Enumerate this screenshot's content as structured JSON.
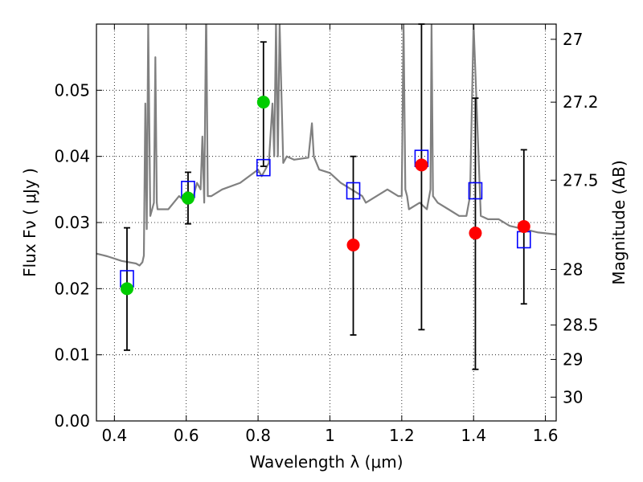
{
  "chart_data": {
    "type": "scatter",
    "xlabel": "Wavelength  λ (μm)",
    "ylabel": "Flux  Fν ( μJy )",
    "ylabel_right": "Magnitude (AB)",
    "xlim": [
      0.35,
      1.63
    ],
    "ylim": [
      0.0,
      0.06
    ],
    "grid": true,
    "x_ticks": [
      0.4,
      0.6,
      0.8,
      1.0,
      1.2,
      1.4,
      1.6
    ],
    "x_tick_labels": [
      "0.4",
      "0.6",
      "0.8",
      "1",
      "1.2",
      "1.4",
      "1.6"
    ],
    "y_ticks": [
      0.0,
      0.01,
      0.02,
      0.03,
      0.04,
      0.05
    ],
    "y_tick_labels": [
      "0.00",
      "0.01",
      "0.02",
      "0.03",
      "0.04",
      "0.05"
    ],
    "right_ticks": [
      {
        "label": "27",
        "flux": 0.0577
      },
      {
        "label": "27.2",
        "flux": 0.0482
      },
      {
        "label": "27.5",
        "flux": 0.0364
      },
      {
        "label": "28",
        "flux": 0.0229
      },
      {
        "label": "28.5",
        "flux": 0.0145
      },
      {
        "label": "29",
        "flux": 0.0093
      },
      {
        "label": "30",
        "flux": 0.0036
      }
    ],
    "series": [
      {
        "kind": "line",
        "color": "#808080",
        "x": [
          0.35,
          0.38,
          0.42,
          0.46,
          0.47,
          0.478,
          0.482,
          0.486,
          0.49,
          0.494,
          0.5,
          0.505,
          0.51,
          0.514,
          0.518,
          0.52,
          0.55,
          0.58,
          0.6,
          0.62,
          0.63,
          0.64,
          0.645,
          0.65,
          0.655,
          0.656,
          0.66,
          0.665,
          0.67,
          0.7,
          0.75,
          0.8,
          0.81,
          0.83,
          0.84,
          0.845,
          0.85,
          0.855,
          0.86,
          0.87,
          0.88,
          0.9,
          0.94,
          0.95,
          0.955,
          0.97,
          1.0,
          1.03,
          1.06,
          1.09,
          1.1,
          1.13,
          1.16,
          1.19,
          1.2,
          1.205,
          1.21,
          1.215,
          1.22,
          1.25,
          1.27,
          1.28,
          1.283,
          1.287,
          1.3,
          1.33,
          1.36,
          1.38,
          1.39,
          1.4,
          1.42,
          1.44,
          1.47,
          1.5,
          1.54,
          1.58,
          1.63
        ],
        "y": [
          0.0253,
          0.0249,
          0.0242,
          0.0238,
          0.0235,
          0.024,
          0.025,
          0.048,
          0.029,
          0.06,
          0.031,
          0.032,
          0.033,
          0.055,
          0.033,
          0.032,
          0.032,
          0.034,
          0.033,
          0.034,
          0.036,
          0.035,
          0.043,
          0.033,
          0.06,
          0.06,
          0.034,
          0.034,
          0.034,
          0.035,
          0.036,
          0.038,
          0.037,
          0.039,
          0.048,
          0.04,
          0.06,
          0.04,
          0.06,
          0.039,
          0.04,
          0.0395,
          0.0398,
          0.045,
          0.04,
          0.038,
          0.0375,
          0.036,
          0.035,
          0.034,
          0.033,
          0.034,
          0.035,
          0.034,
          0.034,
          0.06,
          0.035,
          0.034,
          0.032,
          0.033,
          0.032,
          0.035,
          0.06,
          0.034,
          0.033,
          0.032,
          0.031,
          0.031,
          0.034,
          0.06,
          0.031,
          0.0305,
          0.0305,
          0.0295,
          0.029,
          0.0285,
          0.0282
        ]
      },
      {
        "kind": "open-square",
        "color": "#0000ff",
        "x": [
          0.435,
          0.605,
          0.815,
          1.065,
          1.255,
          1.405,
          1.54
        ],
        "y": [
          0.0215,
          0.035,
          0.0383,
          0.0348,
          0.0397,
          0.0348,
          0.0274
        ]
      },
      {
        "kind": "filled-circle",
        "color": "#00cc00",
        "x": [
          0.435,
          0.605,
          0.815
        ],
        "y": [
          0.02,
          0.0337,
          0.0482
        ],
        "err_low": [
          0.0107,
          0.0298,
          0.0385
        ],
        "err_high": [
          0.0292,
          0.0376,
          0.0573
        ]
      },
      {
        "kind": "filled-circle",
        "color": "#ff0000",
        "x": [
          1.065,
          1.255,
          1.405,
          1.54
        ],
        "y": [
          0.0266,
          0.0387,
          0.0284,
          0.0294
        ],
        "err_low": [
          0.013,
          0.0138,
          0.0078,
          0.0177
        ],
        "err_high": [
          0.04,
          0.06,
          0.0488,
          0.041
        ]
      }
    ]
  }
}
